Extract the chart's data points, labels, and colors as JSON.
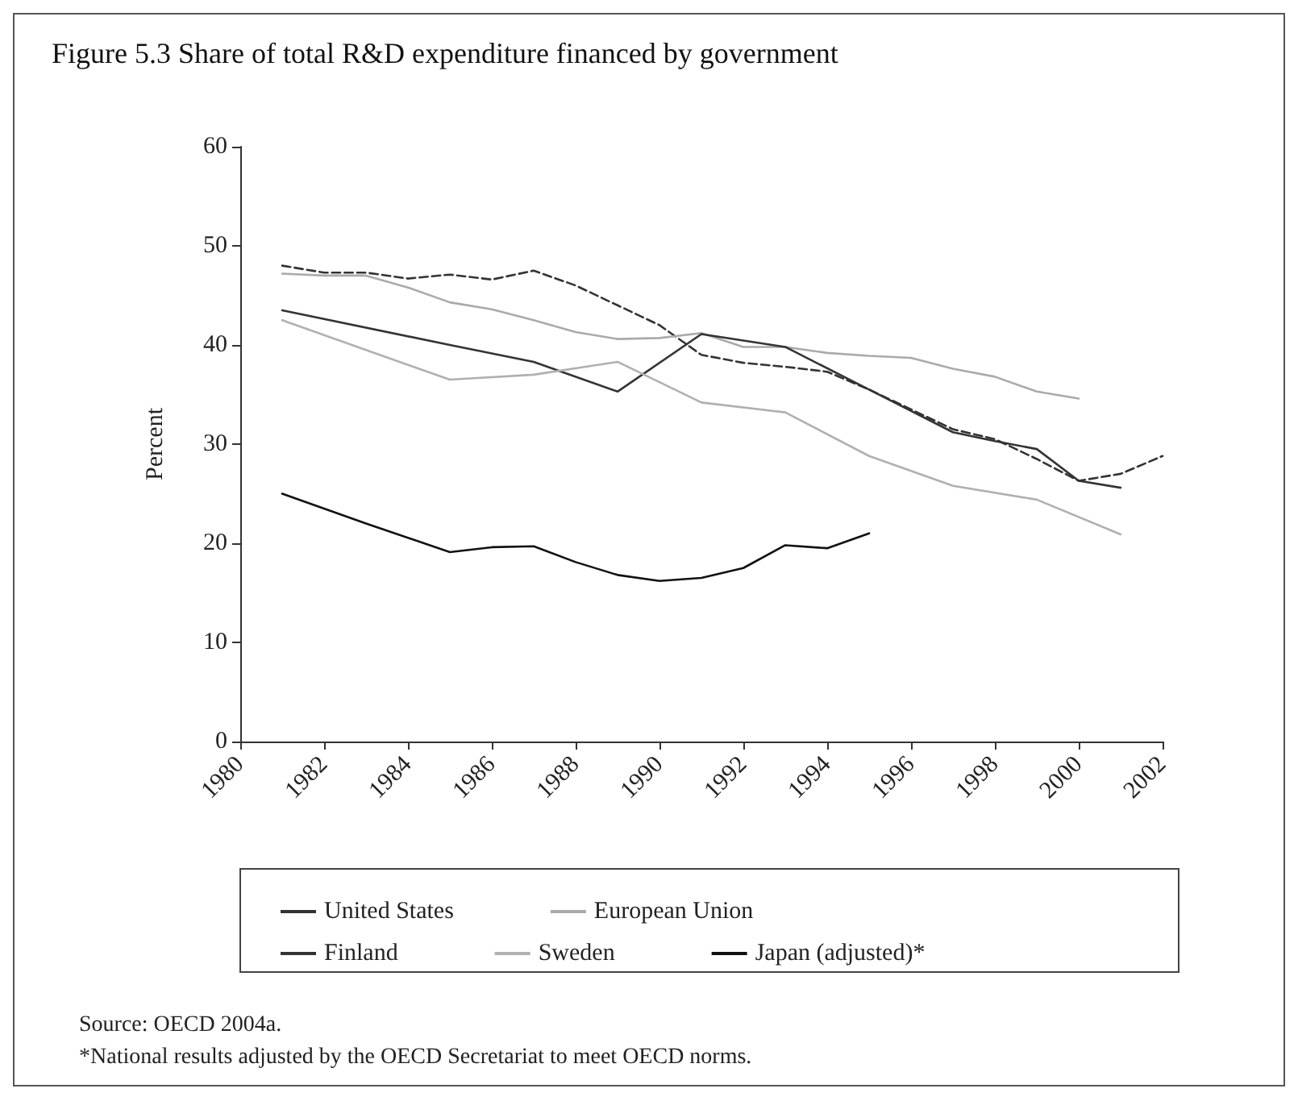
{
  "chart_data": {
    "type": "line",
    "title": "Figure 5.3 Share of total R&D expenditure financed by government",
    "ylabel": "Percent",
    "xlim": [
      1980,
      2002
    ],
    "xticks": [
      1980,
      1982,
      1984,
      1986,
      1988,
      1990,
      1992,
      1994,
      1996,
      1998,
      2000,
      2002
    ],
    "ylim": [
      0,
      60
    ],
    "yticks": [
      0,
      10,
      20,
      30,
      40,
      50,
      60
    ],
    "grid": false,
    "legend": "bottom",
    "marker": "none",
    "annotations": [
      "Source: OECD 2004a.",
      "*National results adjusted by the OECD Secretariat to meet OECD norms."
    ],
    "series": [
      {
        "name": "United States",
        "color": "#333333",
        "line_style": "dashed",
        "x": [
          1981,
          1982,
          1983,
          1984,
          1985,
          1986,
          1987,
          1988,
          1989,
          1990,
          1991,
          1992,
          1993,
          1994,
          1995,
          1996,
          1997,
          1998,
          1999,
          2000,
          2001,
          2002
        ],
        "values": [
          48,
          47.3,
          47.3,
          46.7,
          47.1,
          46.6,
          47.5,
          46,
          44,
          42,
          39,
          38.2,
          37.8,
          37.3,
          35.5,
          33.5,
          31.5,
          30.5,
          28.5,
          26.3,
          27,
          28.8
        ]
      },
      {
        "name": "European Union",
        "color": "#aaaaaa",
        "line_style": "solid",
        "x": [
          1981,
          1982,
          1983,
          1984,
          1985,
          1986,
          1987,
          1988,
          1989,
          1990,
          1991,
          1992,
          1993,
          1994,
          1995,
          1996,
          1997,
          1998,
          1999,
          2000
        ],
        "values": [
          47.2,
          47,
          47,
          45.8,
          44.3,
          43.6,
          42.5,
          41.3,
          40.6,
          40.7,
          41.2,
          39.8,
          39.8,
          39.2,
          38.9,
          38.7,
          37.6,
          36.8,
          35.3,
          34.6
        ]
      },
      {
        "name": "Finland",
        "color": "#333333",
        "line_style": "solid",
        "x": [
          1981,
          1985,
          1987,
          1989,
          1991,
          1993,
          1995,
          1997,
          1998,
          1999,
          2000,
          2001
        ],
        "values": [
          43.5,
          40,
          38.3,
          35.3,
          41.1,
          39.8,
          35.5,
          31.2,
          30.3,
          29.5,
          26.3,
          25.6
        ]
      },
      {
        "name": "Sweden",
        "color": "#b0b0b0",
        "line_style": "solid",
        "x": [
          1981,
          1985,
          1987,
          1989,
          1991,
          1993,
          1995,
          1997,
          1999,
          2001
        ],
        "values": [
          42.5,
          36.5,
          37,
          38.3,
          34.2,
          33.2,
          28.8,
          25.8,
          24.4,
          20.9
        ]
      },
      {
        "name": "Japan (adjusted)*",
        "color": "#111111",
        "line_style": "solid",
        "x": [
          1981,
          1983,
          1985,
          1986,
          1987,
          1988,
          1989,
          1990,
          1991,
          1992,
          1993,
          1994,
          1995
        ],
        "values": [
          25,
          22,
          19.1,
          19.6,
          19.7,
          18.1,
          16.8,
          16.2,
          16.5,
          17.5,
          19.8,
          19.5,
          21
        ]
      }
    ]
  }
}
